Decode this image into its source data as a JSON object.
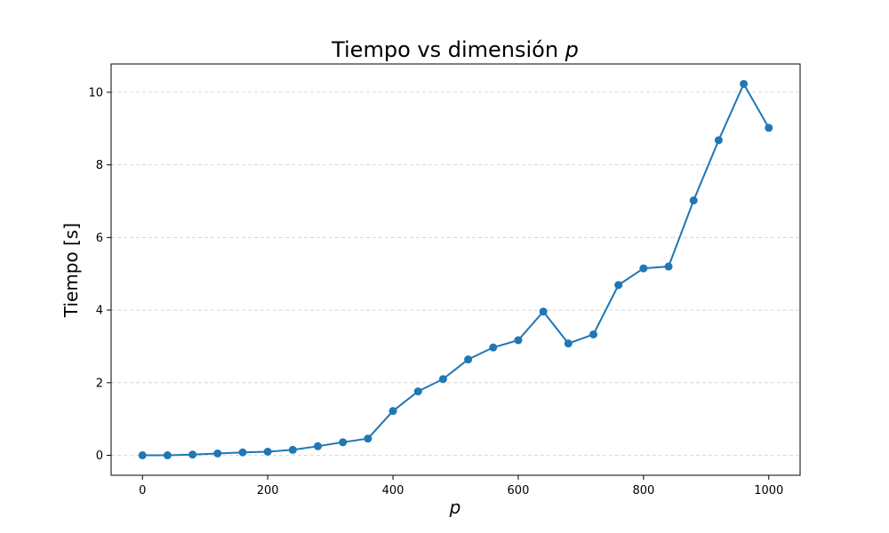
{
  "chart_data": {
    "type": "line",
    "title": "Tiempo vs dimensión ",
    "title_var": "p",
    "xlabel": "p",
    "ylabel": "Tiempo [s]",
    "xlim": [
      -50,
      1050
    ],
    "ylim": [
      -0.55,
      10.78
    ],
    "xticks": [
      0,
      200,
      400,
      600,
      800,
      1000
    ],
    "yticks": [
      0,
      2,
      4,
      6,
      8,
      10
    ],
    "grid": "y-dashed",
    "color": "#1f77b4",
    "series": [
      {
        "marker": "circle",
        "x": [
          0,
          40,
          80,
          120,
          160,
          200,
          240,
          280,
          320,
          360,
          400,
          440,
          480,
          520,
          560,
          600,
          640,
          680,
          720,
          760,
          800,
          840,
          880,
          920,
          960,
          1000
        ],
        "y": [
          0.0,
          0.0,
          0.02,
          0.05,
          0.08,
          0.1,
          0.15,
          0.25,
          0.36,
          0.46,
          1.22,
          1.76,
          2.1,
          2.64,
          2.97,
          3.17,
          3.96,
          3.08,
          3.33,
          4.69,
          5.15,
          5.2,
          7.02,
          8.68,
          10.23,
          9.02
        ]
      }
    ]
  }
}
